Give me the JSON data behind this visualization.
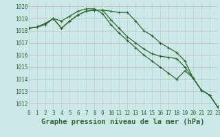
{
  "xlabel": "Graphe pression niveau de la mer (hPa)",
  "ylim": [
    1011.5,
    1020.3
  ],
  "xlim": [
    0,
    23
  ],
  "yticks": [
    1012,
    1013,
    1014,
    1015,
    1016,
    1017,
    1018,
    1019,
    1020
  ],
  "xticks": [
    0,
    1,
    2,
    3,
    4,
    5,
    6,
    7,
    8,
    9,
    10,
    11,
    12,
    13,
    14,
    15,
    16,
    17,
    18,
    19,
    20,
    21,
    22,
    23
  ],
  "bg_color": "#cce8e8",
  "grid_color": "#aacccc",
  "line_color": "#2d6a2d",
  "marker": "+",
  "lines": [
    [
      1018.2,
      1018.3,
      1018.5,
      1019.0,
      1018.2,
      1018.8,
      1019.3,
      1019.6,
      1019.7,
      1019.7,
      1019.6,
      1019.5,
      1019.5,
      1018.8,
      1018.0,
      1017.6,
      1017.0,
      1016.6,
      1016.2,
      1015.5,
      1014.1,
      1013.1,
      1012.7,
      1011.7
    ],
    [
      1018.2,
      1018.3,
      1018.5,
      1019.0,
      1018.2,
      1018.8,
      1019.3,
      1019.6,
      1019.7,
      1019.7,
      1018.9,
      1018.2,
      1017.5,
      1017.0,
      1016.5,
      1016.1,
      1015.9,
      1015.8,
      1015.7,
      1015.0,
      1014.1,
      1013.1,
      1012.7,
      1011.7
    ],
    [
      1018.2,
      1018.3,
      1018.6,
      1019.0,
      1018.8,
      1019.2,
      1019.6,
      1019.8,
      1019.8,
      1019.4,
      1018.5,
      1017.8,
      1017.2,
      1016.6,
      1016.0,
      1015.5,
      1015.0,
      1014.5,
      1014.0,
      1014.7,
      1014.1,
      1013.1,
      1012.7,
      1011.7
    ]
  ],
  "font_color": "#2d6a2d",
  "tick_fontsize": 5.5,
  "xlabel_fontsize": 7.5,
  "linewidth": 0.9
}
